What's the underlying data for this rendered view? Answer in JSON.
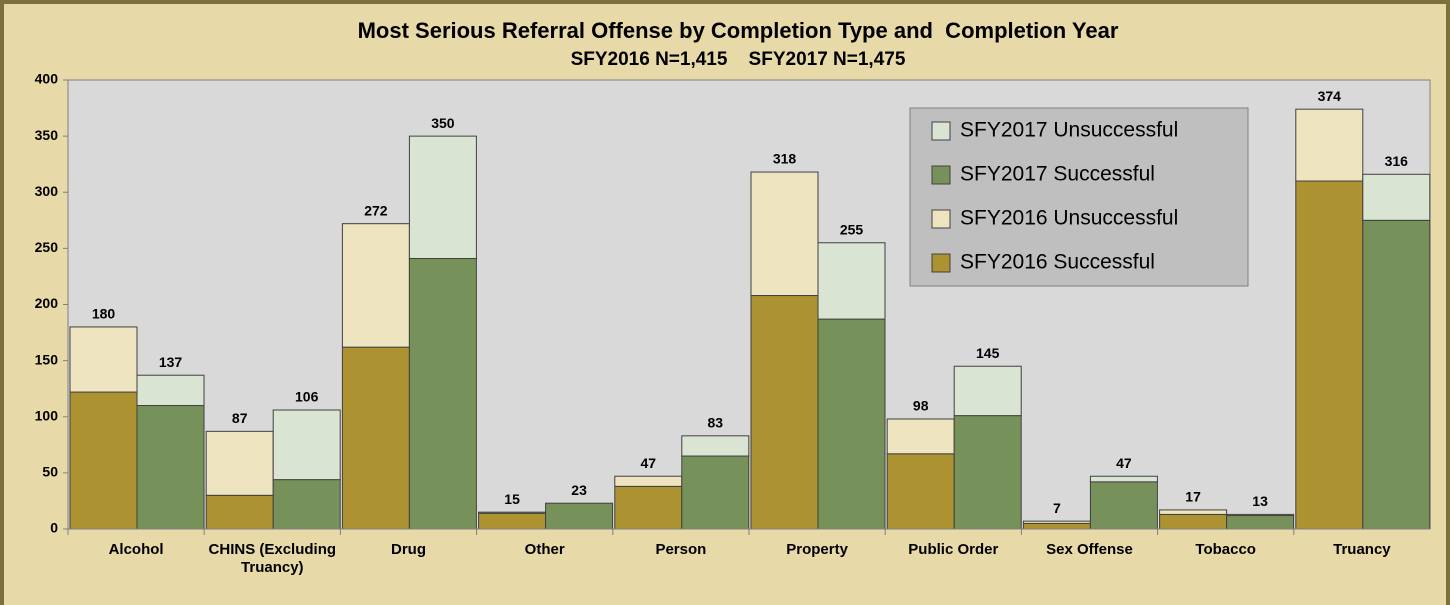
{
  "chart_data": {
    "type": "stacked-grouped-bar",
    "title": "Most Serious Referral Offense by Completion Type and  Completion Year",
    "subtitle": "SFY2016 N=1,415    SFY2017 N=1,475",
    "categories": [
      "Alcohol",
      "CHINS (Excluding Truancy)",
      "Drug",
      "Other",
      "Person",
      "Property",
      "Public Order",
      "Sex Offense",
      "Tobacco",
      "Truancy"
    ],
    "series": [
      {
        "name": "SFY2016 Successful",
        "color": "#ad9232",
        "stack": 0,
        "values": [
          122,
          30,
          162,
          14,
          38,
          208,
          67,
          5,
          13,
          310
        ]
      },
      {
        "name": "SFY2016 Unsuccessful",
        "color": "#efe4c0",
        "stack": 0,
        "values": [
          58,
          57,
          110,
          1,
          9,
          110,
          31,
          2,
          4,
          64
        ]
      },
      {
        "name": "SFY2017 Successful",
        "color": "#76925a",
        "stack": 1,
        "values": [
          110,
          44,
          241,
          23,
          65,
          187,
          101,
          42,
          12,
          275
        ]
      },
      {
        "name": "SFY2017 Unsuccessful",
        "color": "#d9e4d2",
        "stack": 1,
        "values": [
          27,
          62,
          109,
          0,
          18,
          68,
          44,
          5,
          1,
          41
        ]
      }
    ],
    "stack_totals": [
      [
        180,
        87,
        272,
        15,
        47,
        318,
        98,
        7,
        17,
        374
      ],
      [
        137,
        106,
        350,
        23,
        83,
        255,
        145,
        47,
        13,
        316
      ]
    ],
    "ylim": [
      0,
      400
    ],
    "yticks": [
      0,
      50,
      100,
      150,
      200,
      250,
      300,
      350,
      400
    ],
    "grid": false,
    "legend": "upper-right"
  }
}
